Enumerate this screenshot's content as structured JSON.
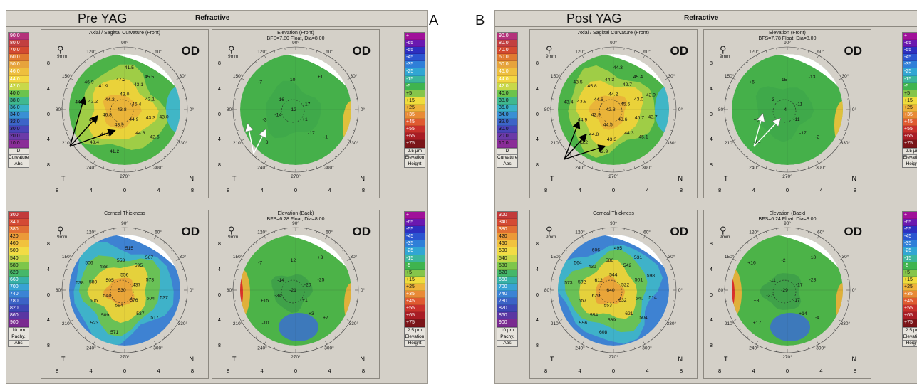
{
  "panels": [
    {
      "letter": "A",
      "title": "Pre YAG",
      "subtitle": "Refractive",
      "scale_left": [
        "90.0",
        "80.0",
        "70.0",
        "60.0",
        "50.0",
        "46.0",
        "44.0",
        "42.0",
        "40.0",
        "38.0",
        "36.0",
        "34.0",
        "32.0",
        "30.0",
        "20.0",
        "10.0"
      ],
      "scale_left_foot": [
        "D",
        "Curvature",
        "Abs"
      ],
      "scale_right": [
        "+",
        "-65",
        "-55",
        "-45",
        "-35",
        "-25",
        "-15",
        "-5",
        "+5",
        "+15",
        "+25",
        "+35",
        "+45",
        "+55",
        "+65",
        "+75"
      ],
      "scale_right_foot": [
        "2.5 µm",
        "Elevation",
        "Height"
      ],
      "pachy_scale": [
        "300",
        "340",
        "380",
        "420",
        "460",
        "500",
        "540",
        "580",
        "620",
        "660",
        "700",
        "740",
        "780",
        "820",
        "860",
        "900"
      ],
      "pachy_foot": [
        "10 µm",
        "Pachy.",
        "Abs"
      ],
      "maps": [
        {
          "title": "Axial / Sagittal Curvature (Front)",
          "subtitle": "",
          "od": "OD",
          "mag_sub": "9mm",
          "values": [
            "43.8",
            "44.3",
            "44.9",
            "47.2",
            "44.7",
            "44.3",
            "45.5",
            "46.9",
            "43.4",
            "42.6",
            "45.4",
            "46.8",
            "42.1",
            "41.9",
            "44.2",
            "43.3",
            "41.5",
            "44.7",
            "41.2",
            "43.0",
            "43.0",
            "43.9",
            "43.1",
            "42.2"
          ]
        },
        {
          "title": "Elevation (Front)",
          "subtitle": "BFS=7.80 Float, Dia=8.00",
          "od": "OD",
          "mag_sub": "9mm",
          "values": [
            "-12",
            "-16",
            "+1",
            "-10",
            "-3",
            "-17",
            "+1",
            "-7",
            "+3",
            "-1",
            "17",
            "-14"
          ]
        },
        {
          "title": "Corneal Thickness",
          "subtitle": "",
          "od": "OD",
          "mag_sub": "9mm",
          "values": [
            "530",
            "505",
            "576",
            "553",
            "605",
            "537",
            "567",
            "506",
            "523",
            "517",
            "437",
            "544",
            "573",
            "488",
            "509",
            "604",
            "515",
            "538",
            "571",
            "537",
            "556",
            "584",
            "595",
            "580"
          ]
        },
        {
          "title": "Elevation (Back)",
          "subtitle": "BFS=6.28 Float, Dia=8.00",
          "od": "OD",
          "mag_sub": "9mm",
          "values": [
            "-21",
            "-14",
            "+1",
            "+12",
            "+15",
            "+3",
            "+3",
            "-7",
            "-10",
            "+7",
            "-20",
            "-34",
            "-25"
          ]
        }
      ]
    },
    {
      "letter": "B",
      "title": "Post YAG",
      "subtitle": "Refractive",
      "scale_left": [
        "90.0",
        "80.0",
        "70.0",
        "60.0",
        "50.0",
        "46.0",
        "44.0",
        "42.0",
        "40.0",
        "38.0",
        "36.0",
        "34.0",
        "32.0",
        "30.0",
        "20.0",
        "10.0"
      ],
      "scale_left_foot": [
        "D",
        "Curvature",
        "Abs"
      ],
      "scale_right": [
        "+",
        "-65",
        "-55",
        "-45",
        "-35",
        "-25",
        "-15",
        "-5",
        "+5",
        "+15",
        "+25",
        "+35",
        "+45",
        "+55",
        "+65",
        "+75"
      ],
      "scale_right_foot": [
        "2.5 µm",
        "Elevation",
        "Height"
      ],
      "pachy_scale": [
        "300",
        "340",
        "380",
        "420",
        "460",
        "500",
        "540",
        "580",
        "620",
        "660",
        "700",
        "740",
        "780",
        "820",
        "860",
        "900"
      ],
      "pachy_foot": [
        "10 µm",
        "Pachy.",
        "Abs"
      ],
      "maps": [
        {
          "title": "Axial / Sagittal Curvature (Front)",
          "subtitle": "",
          "od": "OD",
          "mag_sub": "9mm",
          "values": [
            "42.8",
            "44.6",
            "43.6",
            "44.3",
            "44.9",
            "44.3",
            "45.4",
            "43.5",
            "43.2",
            "45.1",
            "45.5",
            "42.9",
            "43.0",
            "45.8",
            "44.8",
            "45.7",
            "44.3",
            "43.4",
            "42.9",
            "43.7",
            "44.2",
            "44.5",
            "42.7",
            "43.9",
            "43.3",
            "42.9"
          ]
        },
        {
          "title": "Elevation (Front)",
          "subtitle": "BFS=7.78 Float, Dia=8.00",
          "od": "OD",
          "mag_sub": "9mm",
          "values": [
            "-4",
            "-3",
            "-11",
            "-15",
            "+8",
            "-17",
            "-13",
            "+6",
            "-14",
            "-2",
            "-11"
          ]
        },
        {
          "title": "Corneal Thickness",
          "subtitle": "",
          "od": "OD",
          "mag_sub": "9mm",
          "values": [
            "640",
            "612",
            "632",
            "586",
            "557",
            "621",
            "531",
            "564",
            "556",
            "504",
            "522",
            "620",
            "501",
            "439",
            "554",
            "540",
            "495",
            "573",
            "608",
            "514",
            "544",
            "553",
            "542",
            "592",
            "569",
            "598",
            "606"
          ]
        },
        {
          "title": "Elevation (Back)",
          "subtitle": "BFS=6.24 Float, Dia=8.00",
          "od": "OD",
          "mag_sub": "9mm",
          "values": [
            "-29",
            "-11",
            "-17",
            "-2",
            "+8",
            "+14",
            "+10",
            "+16",
            "+17",
            "-4",
            "-17",
            "-27",
            "-23"
          ]
        }
      ]
    }
  ],
  "angles": [
    "90°",
    "60°",
    "30°",
    "0°",
    "330°",
    "300°",
    "270°",
    "240°",
    "210°",
    "180°",
    "150°",
    "120°"
  ],
  "x_ticks": [
    "8",
    "4",
    "0",
    "4",
    "8"
  ],
  "side_ticks": [
    "8",
    "4",
    "0",
    "4",
    "8"
  ],
  "label_T": "T",
  "label_N": "N",
  "colors": {
    "yellow": "#f0d23a",
    "orange": "#e9a13a",
    "green": "#4cb348",
    "cyan": "#3fb6d4",
    "blue": "#2e5fc9",
    "red": "#d9302b"
  }
}
